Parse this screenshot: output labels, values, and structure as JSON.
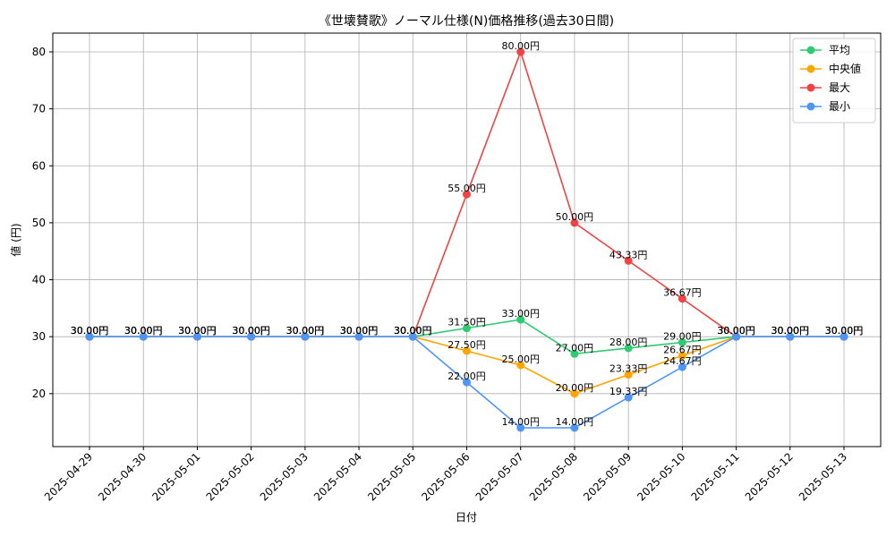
{
  "chart_data": {
    "type": "line",
    "title": "《世壊賛歌》ノーマル仕様(N)価格推移(過去30日間)",
    "xlabel": "日付",
    "ylabel": "値 (円)",
    "ylim": [
      10.7,
      83.3
    ],
    "yticks": [
      20,
      30,
      40,
      50,
      60,
      70,
      80
    ],
    "grid": true,
    "legend_position": "top-right",
    "value_suffix": "円",
    "x": [
      "2025-04-29",
      "2025-04-30",
      "2025-05-01",
      "2025-05-02",
      "2025-05-03",
      "2025-05-04",
      "2025-05-05",
      "2025-05-06",
      "2025-05-07",
      "2025-05-08",
      "2025-05-09",
      "2025-05-10",
      "2025-05-11",
      "2025-05-12",
      "2025-05-13"
    ],
    "series": [
      {
        "name": "平均",
        "color": "#2ecc71",
        "values": [
          30.0,
          30.0,
          30.0,
          30.0,
          30.0,
          30.0,
          30.0,
          31.5,
          33.0,
          27.0,
          28.0,
          29.0,
          30.0,
          30.0,
          30.0
        ]
      },
      {
        "name": "中央値",
        "color": "#ffa500",
        "values": [
          30.0,
          30.0,
          30.0,
          30.0,
          30.0,
          30.0,
          30.0,
          27.5,
          25.0,
          20.0,
          23.33,
          26.67,
          30.0,
          30.0,
          30.0
        ]
      },
      {
        "name": "最大",
        "color": "#ef4444",
        "values": [
          30.0,
          30.0,
          30.0,
          30.0,
          30.0,
          30.0,
          30.0,
          55.0,
          80.0,
          50.0,
          43.33,
          36.67,
          30.0,
          30.0,
          30.0
        ]
      },
      {
        "name": "最小",
        "color": "#4d96f7",
        "values": [
          30.0,
          30.0,
          30.0,
          30.0,
          30.0,
          30.0,
          30.0,
          22.0,
          14.0,
          14.0,
          19.33,
          24.67,
          30.0,
          30.0,
          30.0
        ]
      }
    ]
  }
}
